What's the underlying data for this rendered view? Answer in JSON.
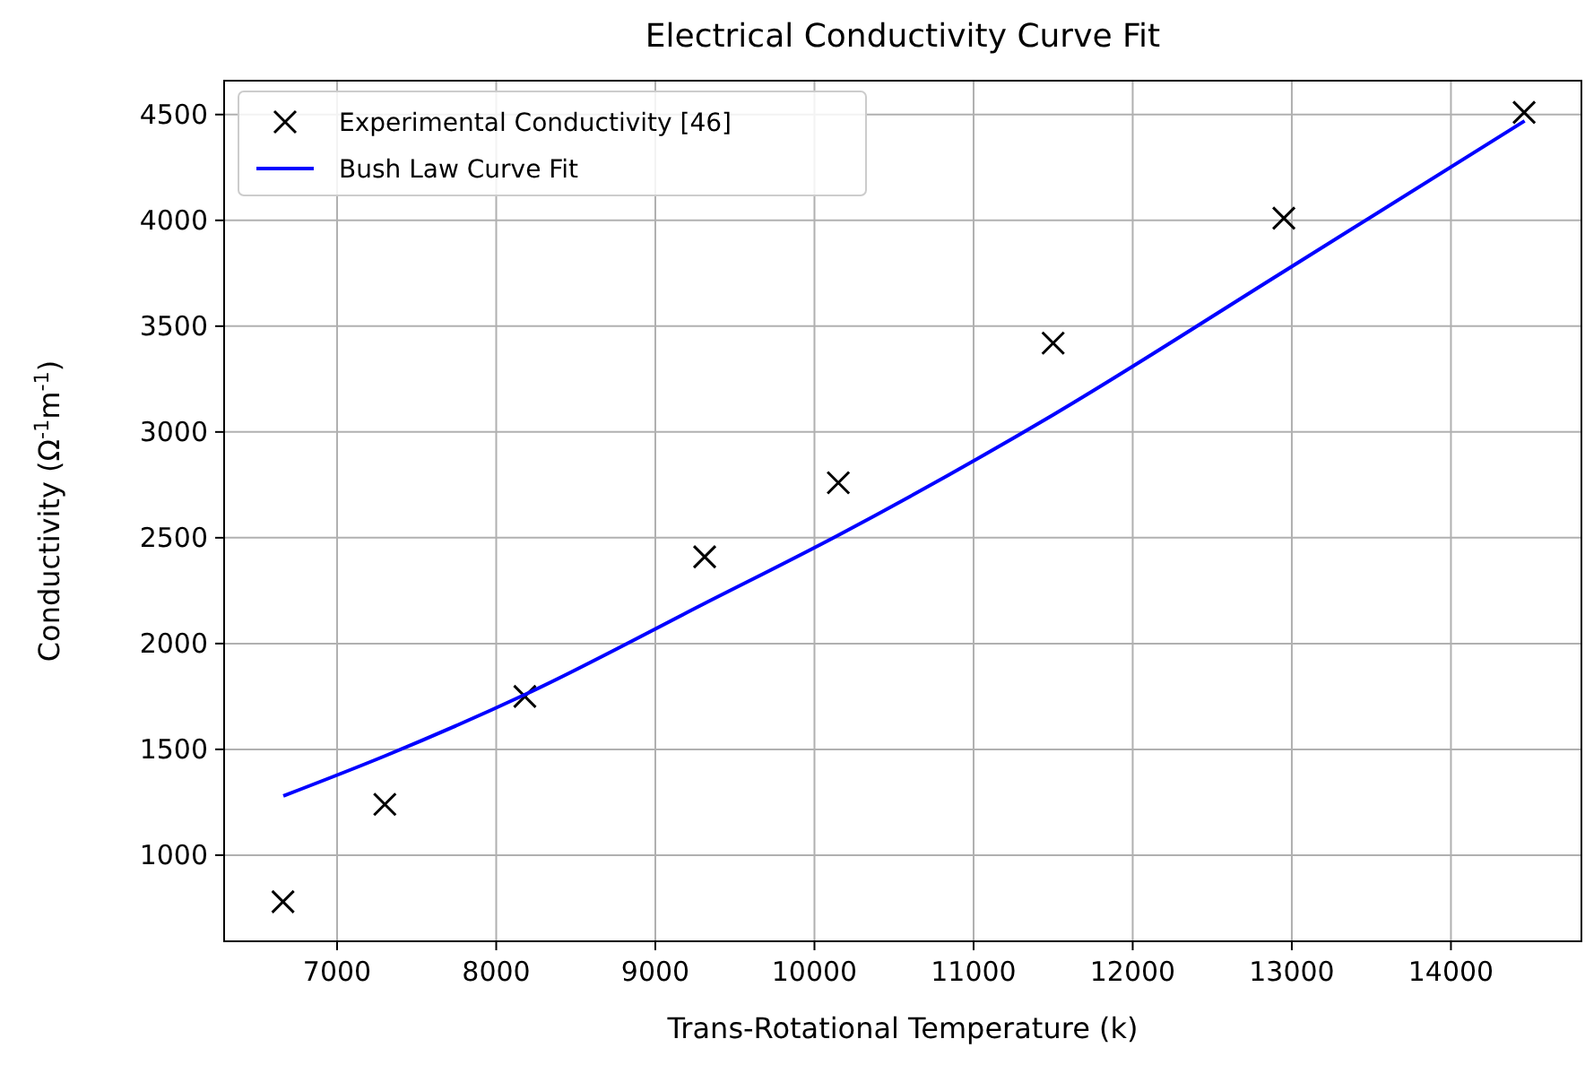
{
  "chart_data": {
    "type": "scatter",
    "title": "Electrical Conductivity Curve Fit",
    "xlabel": "Trans-Rotational Temperature (k)",
    "ylabel": "Conductivity (Ω$^{-1}$m$^{-1}$)",
    "xlim": [
      6290,
      14820
    ],
    "ylim": [
      593,
      4660
    ],
    "xticks": [
      7000,
      8000,
      9000,
      10000,
      11000,
      12000,
      13000,
      14000
    ],
    "yticks": [
      1000,
      1500,
      2000,
      2500,
      3000,
      3500,
      4000,
      4500
    ],
    "grid": true,
    "legend": "top left",
    "series": [
      {
        "name": "Experimental Conductivity [46]",
        "marker": "cross",
        "color": "#000000",
        "x": [
          6660,
          7300,
          8180,
          9310,
          10150,
          11500,
          12950,
          14460
        ],
        "values": [
          780,
          1240,
          1750,
          2410,
          2760,
          3420,
          4010,
          4510
        ]
      },
      {
        "name": "Bush Law Curve Fit",
        "type": "line",
        "marker": "none",
        "color": "#0000ff",
        "x": [
          6662,
          7304,
          8184,
          9311,
          10145,
          11498,
          12953,
          14463
        ],
        "values": [
          1280,
          1470,
          1760,
          2190,
          2510,
          3080,
          3760,
          4470
        ]
      }
    ]
  }
}
